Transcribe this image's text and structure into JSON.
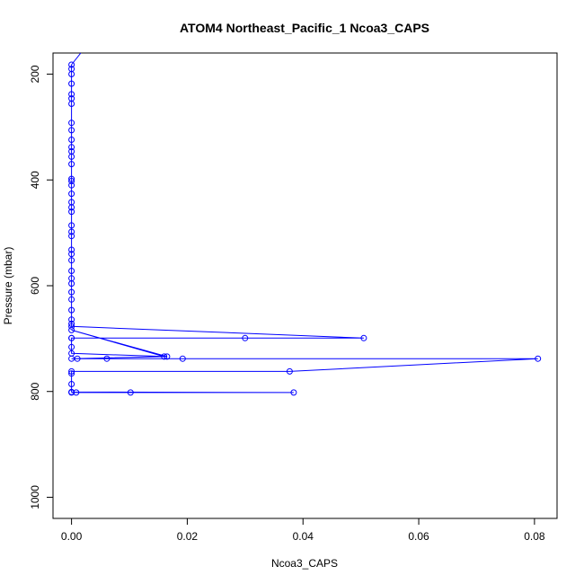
{
  "chart_data": {
    "type": "scatter",
    "title": "ATOM4 Northeast_Pacific_1 Ncoa3_CAPS",
    "xlabel": "Ncoa3_CAPS",
    "ylabel": "Pressure (mbar)",
    "xlim": [
      -0.0032,
      0.0839
    ],
    "ylim": [
      1040,
      160
    ],
    "y_reversed": true,
    "x_ticks": [
      0.0,
      0.02,
      0.04,
      0.06,
      0.08
    ],
    "x_tick_labels": [
      "0.00",
      "0.02",
      "0.04",
      "0.06",
      "0.08"
    ],
    "y_ticks": [
      200,
      400,
      600,
      800,
      1000
    ],
    "y_tick_labels": [
      "200",
      "400",
      "600",
      "800",
      "1000"
    ],
    "grid": false,
    "series": [
      {
        "color": "#0000ff",
        "marker": "open-circle",
        "connected": true,
        "points": [
          [
            0.0016,
            160
          ],
          [
            0.0,
            182
          ],
          [
            0.0,
            190
          ],
          [
            0.0,
            200
          ],
          [
            0.0,
            218
          ],
          [
            0.0,
            238
          ],
          [
            0.0,
            246
          ],
          [
            0.0,
            256
          ],
          [
            0.0,
            292
          ],
          [
            0.0,
            306
          ],
          [
            0.0,
            324
          ],
          [
            0.0,
            338
          ],
          [
            0.0,
            346
          ],
          [
            0.0,
            356
          ],
          [
            0.0,
            370
          ],
          [
            0.0,
            398
          ],
          [
            0.0,
            402
          ],
          [
            0.0,
            410
          ],
          [
            0.0,
            426
          ],
          [
            0.0,
            442
          ],
          [
            0.0,
            452
          ],
          [
            0.0,
            460
          ],
          [
            0.0,
            486
          ],
          [
            0.0,
            498
          ],
          [
            0.0,
            506
          ],
          [
            0.0,
            532
          ],
          [
            0.0,
            540
          ],
          [
            0.0,
            552
          ],
          [
            0.0,
            572
          ],
          [
            0.0,
            586
          ],
          [
            0.0,
            596
          ],
          [
            0.0,
            612
          ],
          [
            0.0,
            626
          ],
          [
            0.0,
            646
          ],
          [
            0.0,
            664
          ],
          [
            0.0,
            672
          ],
          [
            0.0,
            677
          ],
          [
            0.0505,
            699
          ],
          [
            0.0,
            699
          ],
          [
            0.03,
            699
          ],
          [
            0.0,
            699
          ],
          [
            0.0,
            716
          ],
          [
            0.0,
            728
          ],
          [
            0.0165,
            734
          ],
          [
            0.0,
            684
          ],
          [
            0.016,
            734
          ],
          [
            0.0,
            738
          ],
          [
            0.0192,
            738
          ],
          [
            0.0061,
            738
          ],
          [
            0.001,
            738
          ],
          [
            0.0806,
            738
          ],
          [
            0.0377,
            762
          ],
          [
            0.0,
            762
          ],
          [
            0.0,
            766
          ],
          [
            0.0,
            786
          ],
          [
            0.0,
            801
          ],
          [
            0.0384,
            802
          ],
          [
            0.0102,
            802
          ],
          [
            0.0008,
            802
          ],
          [
            0.0,
            802
          ]
        ]
      }
    ]
  }
}
